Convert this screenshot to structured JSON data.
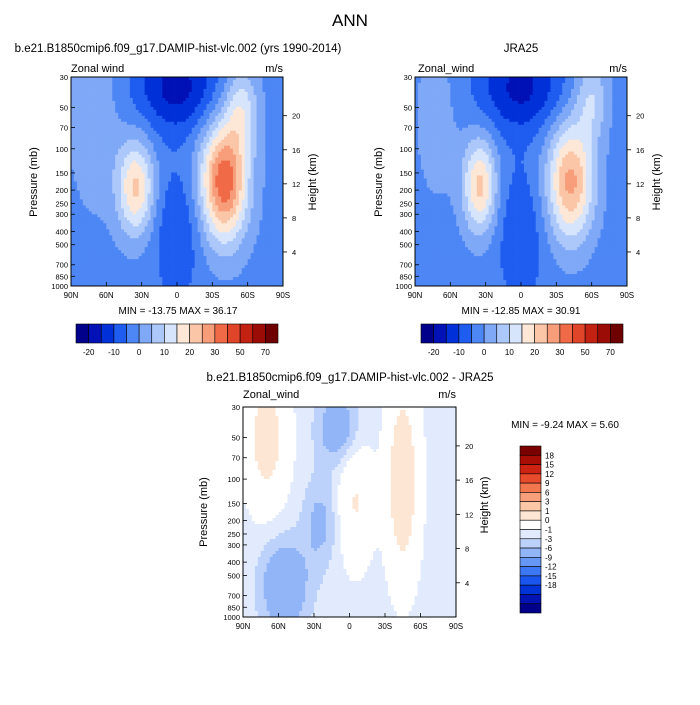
{
  "page_title": "ANN",
  "palette_main": [
    "#00008b",
    "#0011b5",
    "#0030d8",
    "#1f5cf0",
    "#4d86f5",
    "#7fa9f7",
    "#acc8fa",
    "#d7e5fc",
    "#fde7d6",
    "#fbc6a7",
    "#f79d7a",
    "#f06a47",
    "#e0452a",
    "#c32213",
    "#9c0c06",
    "#6f0000"
  ],
  "palette_diff": [
    "#00008b",
    "#0014b3",
    "#0033d6",
    "#1a55ed",
    "#3c78f3",
    "#6797f5",
    "#92b5f8",
    "#bdd2fa",
    "#e1ebfd",
    "#ffffff",
    "#fde6d3",
    "#fbc7a6",
    "#f79f7b",
    "#f2774f",
    "#e84a2c",
    "#cd2312",
    "#a80d06",
    "#7a0000"
  ],
  "chart_data": [
    {
      "type": "heatmap",
      "title": "b.e21.B1850cmip6.f09_g17.DAMIP-hist-vlc.002 (yrs 1990-2014)",
      "left_label": "Zonal wind",
      "right_label": "m/s",
      "ylabel": "Pressure (mb)",
      "ylabel_right": "Height (km)",
      "x_ticks": [
        "90N",
        "60N",
        "30N",
        "0",
        "30S",
        "60S",
        "90S"
      ],
      "y_ticks": [
        "30",
        "50",
        "70",
        "100",
        "150",
        "200",
        "250",
        "300",
        "400",
        "500",
        "700",
        "850",
        "1000"
      ],
      "y_right_ticks": [
        "20",
        "16",
        "12",
        "8",
        "4"
      ],
      "stats": "MIN = -13.75  MAX =  36.17",
      "colorbar_labels": [
        "-20",
        "-10",
        "0",
        "10",
        "20",
        "30",
        "50",
        "70"
      ]
    },
    {
      "type": "heatmap",
      "title": "JRA25",
      "left_label": "Zonal_wind",
      "right_label": "m/s",
      "ylabel": "Pressure (mb)",
      "ylabel_right": "Height (km)",
      "x_ticks": [
        "90N",
        "60N",
        "30N",
        "0",
        "30S",
        "60S",
        "90S"
      ],
      "y_ticks": [
        "30",
        "50",
        "70",
        "100",
        "150",
        "200",
        "250",
        "300",
        "400",
        "500",
        "700",
        "850",
        "1000"
      ],
      "y_right_ticks": [
        "20",
        "16",
        "12",
        "8",
        "4"
      ],
      "stats": "MIN = -12.85  MAX =  30.91",
      "colorbar_labels": [
        "-20",
        "-10",
        "0",
        "10",
        "20",
        "30",
        "50",
        "70"
      ]
    },
    {
      "type": "heatmap",
      "title": "b.e21.B1850cmip6.f09_g17.DAMIP-hist-vlc.002 - JRA25",
      "left_label": "Zonal_wind",
      "right_label": "m/s",
      "ylabel": "Pressure (mb)",
      "ylabel_right": "Height (km)",
      "x_ticks": [
        "90N",
        "60N",
        "30N",
        "0",
        "30S",
        "60S",
        "90S"
      ],
      "y_ticks": [
        "30",
        "50",
        "70",
        "100",
        "150",
        "200",
        "250",
        "300",
        "400",
        "500",
        "700",
        "850",
        "1000"
      ],
      "y_right_ticks": [
        "20",
        "16",
        "12",
        "8",
        "4"
      ],
      "stats": "MIN =  -9.24  MAX =    5.60",
      "colorbar_labels": [
        "18",
        "15",
        "12",
        "9",
        "6",
        "3",
        "1",
        "0",
        "-1",
        "-3",
        "-6",
        "-9",
        "-12",
        "-15",
        "-18"
      ]
    }
  ]
}
